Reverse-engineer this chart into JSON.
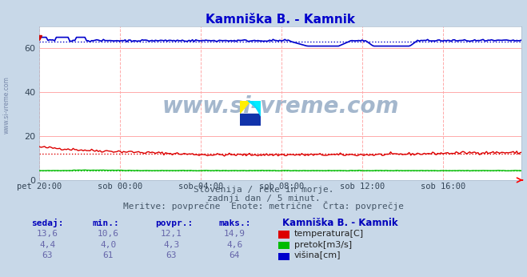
{
  "title": "Kamniška B. - Kamnik",
  "subtitle1": "Slovenija / reke in morje.",
  "subtitle2": "zadnji dan / 5 minut.",
  "subtitle3": "Meritve: povprečne  Enote: metrične  Črta: povprečje",
  "bg_color": "#c8d8e8",
  "plot_bg_color": "#ffffff",
  "grid_color": "#ffaaaa",
  "x_tick_labels": [
    "pet 20:00",
    "sob 00:00",
    "sob 04:00",
    "sob 08:00",
    "sob 12:00",
    "sob 16:00"
  ],
  "x_tick_positions": [
    0,
    48,
    96,
    144,
    192,
    240
  ],
  "n_points": 288,
  "ylim": [
    0,
    70
  ],
  "yticks": [
    0,
    20,
    40,
    60
  ],
  "temp_color": "#dd0000",
  "flow_color": "#00bb00",
  "height_color": "#0000cc",
  "watermark": "www.si-vreme.com",
  "watermark_color": "#9ab0c8",
  "table_header_color": "#0000bb",
  "table_data_color": "#6666aa",
  "legend_colors": [
    "#dd0000",
    "#00bb00",
    "#0000cc"
  ],
  "legend_labels": [
    "temperatura[C]",
    "pretok[m3/s]",
    "višina[cm]"
  ],
  "col_headers": [
    "sedaj:",
    "min.:",
    "povpr.:",
    "maks.:"
  ],
  "row1": [
    "13,6",
    "10,6",
    "12,1",
    "14,9"
  ],
  "row2": [
    "4,4",
    "4,0",
    "4,3",
    "4,6"
  ],
  "row3": [
    "63",
    "61",
    "63",
    "64"
  ],
  "station_label": "Kamniška B. - Kamnik",
  "temp_avg": 12.1,
  "flow_avg": 4.3,
  "height_avg": 63,
  "sidebar_text": "www.si-vreme.com"
}
